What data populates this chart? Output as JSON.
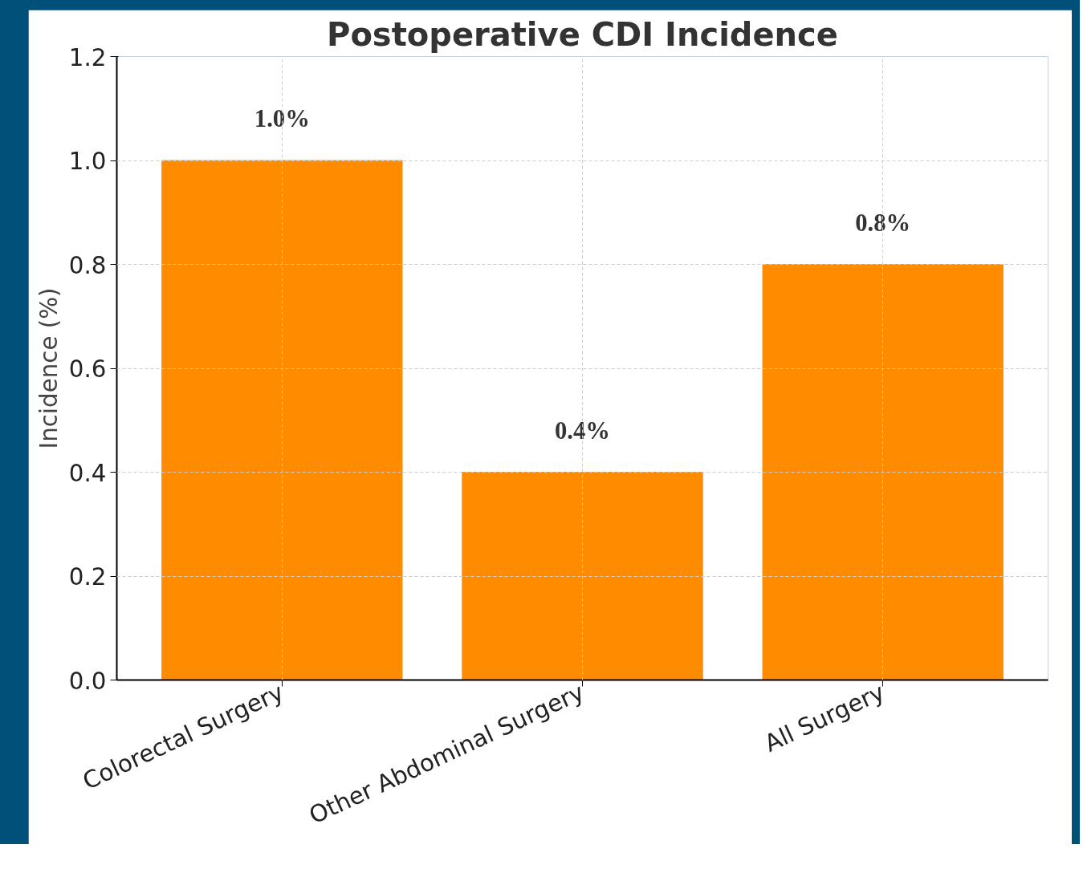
{
  "chart_data": {
    "type": "bar",
    "title": "Postoperative CDI Incidence",
    "ylabel": "Incidence (%)",
    "categories": [
      "Colorectal Surgery",
      "Other Abdominal Surgery",
      "All Surgery"
    ],
    "values": [
      1.0,
      0.4,
      0.8
    ],
    "color": "#ff8c00",
    "value_labels": [
      "1.0%",
      "0.4%",
      "0.8%"
    ],
    "ylim": [
      0,
      1.2
    ],
    "yticks": [
      {
        "value": 0,
        "label": "0.0"
      },
      {
        "value": 0.2,
        "label": "0.2"
      },
      {
        "value": 0.4,
        "label": "0.4"
      },
      {
        "value": 0.6,
        "label": "0.6"
      },
      {
        "value": 0.8,
        "label": "0.8"
      },
      {
        "value": 1.0,
        "label": "1.0"
      },
      {
        "value": 1.2,
        "label": "1.2"
      }
    ],
    "grid": true
  }
}
